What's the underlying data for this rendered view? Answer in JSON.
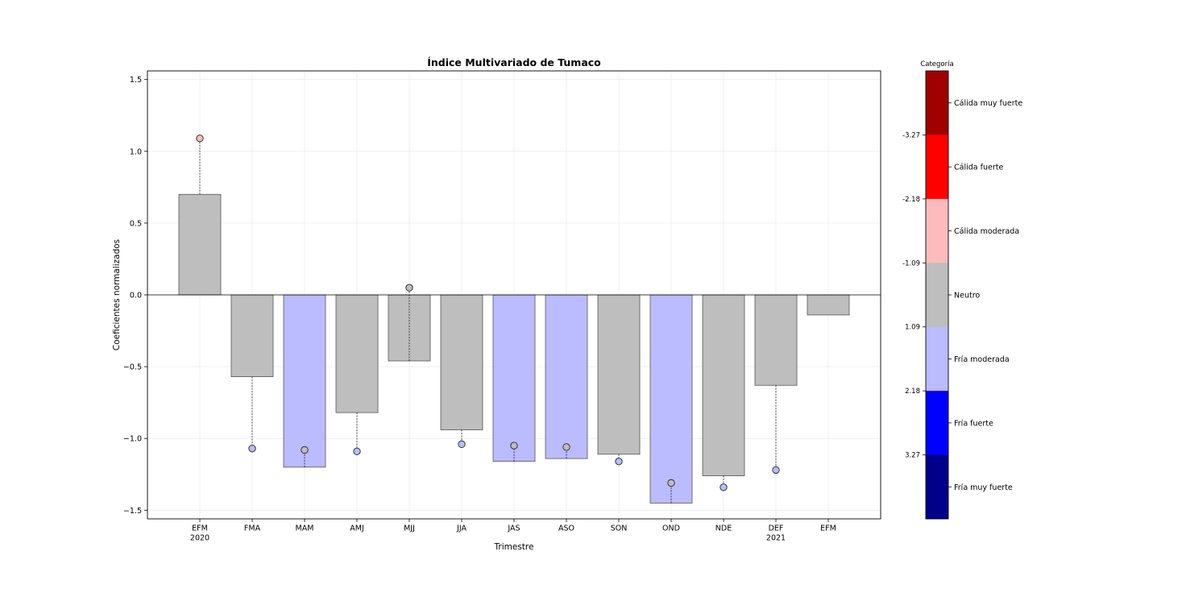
{
  "chart_data": {
    "type": "bar",
    "title": "Índice Multivariado de Tumaco",
    "xlabel": "Trimestre",
    "ylabel": "Coeficientes normalizados",
    "ylim": [
      -1.56,
      1.56
    ],
    "yticks": [
      1.5,
      1.0,
      0.5,
      0.0,
      -0.5,
      -1.0,
      -1.5
    ],
    "ytick_labels": [
      "1.5",
      "1.0",
      "0.5",
      "0.0",
      "−0.5",
      "−1.0",
      "−1.5"
    ],
    "grid": true,
    "categories": [
      "EFM",
      "FMA",
      "MAM",
      "AMJ",
      "MJJ",
      "JJA",
      "JAS",
      "ASO",
      "SON",
      "OND",
      "NDE",
      "DEF",
      "EFM"
    ],
    "year_labels": [
      "2020",
      "",
      "",
      "",
      "",
      "",
      "",
      "",
      "",
      "",
      "",
      "2021",
      ""
    ],
    "bars": {
      "values": [
        0.7,
        -0.57,
        -1.2,
        -0.82,
        -0.46,
        -0.94,
        -1.16,
        -1.14,
        -1.11,
        -1.45,
        -1.26,
        -0.63,
        -0.14
      ],
      "categories": [
        "Neutro",
        "Neutro",
        "Fría moderada",
        "Neutro",
        "Neutro",
        "Neutro",
        "Fría moderada",
        "Fría moderada",
        "Neutro",
        "Fría moderada",
        "Neutro",
        "Neutro",
        "Neutro"
      ]
    },
    "points": {
      "values": [
        1.09,
        -1.07,
        -1.08,
        -1.09,
        0.05,
        -1.04,
        -1.05,
        -1.06,
        -1.16,
        -1.31,
        -1.34,
        -1.22,
        null
      ],
      "categories": [
        "Cálida moderada",
        "Fría moderada",
        "Neutro",
        "Fría moderada",
        "Neutro",
        "Fría moderada",
        "Neutro",
        "Neutro",
        "Fría moderada",
        "Neutro",
        "Fría moderada",
        "Fría moderada",
        null
      ]
    }
  },
  "colorbar": {
    "title": "Categoría",
    "segments": [
      {
        "label": "Cálida muy fuerte",
        "color": "#a00000"
      },
      {
        "label": "Cálida fuerte",
        "color": "#ff0000"
      },
      {
        "label": "Cálida moderada",
        "color": "#ffbbbb"
      },
      {
        "label": "Neutro",
        "color": "#bebebe"
      },
      {
        "label": "Fría moderada",
        "color": "#bbbbff"
      },
      {
        "label": "Fría fuerte",
        "color": "#0000ff"
      },
      {
        "label": "Fría muy fuerte",
        "color": "#00008b"
      }
    ],
    "boundary_labels": [
      "-3.27",
      "-2.18",
      "-1.09",
      "1.09",
      "2.18",
      "3.27"
    ]
  }
}
